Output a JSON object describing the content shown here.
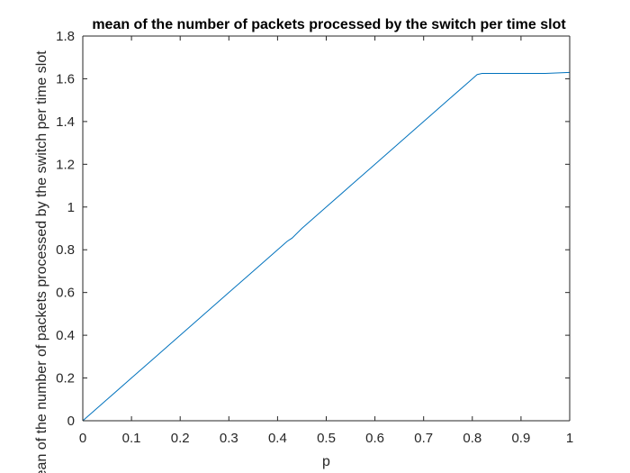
{
  "chart_data": {
    "type": "line",
    "title": "mean of the number of packets processed by the switch per time slot",
    "xlabel": "p",
    "ylabel": "mean of the number of packets processed by the switch per time slot",
    "xlim": [
      0,
      1
    ],
    "ylim": [
      0,
      1.8
    ],
    "xticks": [
      0,
      0.1,
      0.2,
      0.3,
      0.4,
      0.5,
      0.6,
      0.7,
      0.8,
      0.9,
      1
    ],
    "xtick_labels": [
      "0",
      "0.1",
      "0.2",
      "0.3",
      "0.4",
      "0.5",
      "0.6",
      "0.7",
      "0.8",
      "0.9",
      "1"
    ],
    "yticks": [
      0,
      0.2,
      0.4,
      0.6,
      0.8,
      1,
      1.2,
      1.4,
      1.6,
      1.8
    ],
    "ytick_labels": [
      "0",
      "0.2",
      "0.4",
      "0.6",
      "0.8",
      "1",
      "1.2",
      "1.4",
      "1.6",
      "1.8"
    ],
    "grid": false,
    "box": true,
    "series": [
      {
        "color": "#0072bd",
        "x": [
          0,
          0.05,
          0.1,
          0.15,
          0.2,
          0.25,
          0.3,
          0.35,
          0.4,
          0.42,
          0.43,
          0.45,
          0.5,
          0.55,
          0.6,
          0.65,
          0.7,
          0.75,
          0.79,
          0.8,
          0.81,
          0.82,
          0.85,
          0.9,
          0.95,
          1
        ],
        "y": [
          0,
          0.1,
          0.2,
          0.3,
          0.4,
          0.5,
          0.6,
          0.7,
          0.8,
          0.84,
          0.855,
          0.9,
          1.0,
          1.1,
          1.2,
          1.3,
          1.4,
          1.5,
          1.58,
          1.6,
          1.62,
          1.625,
          1.625,
          1.625,
          1.625,
          1.63
        ]
      }
    ]
  }
}
